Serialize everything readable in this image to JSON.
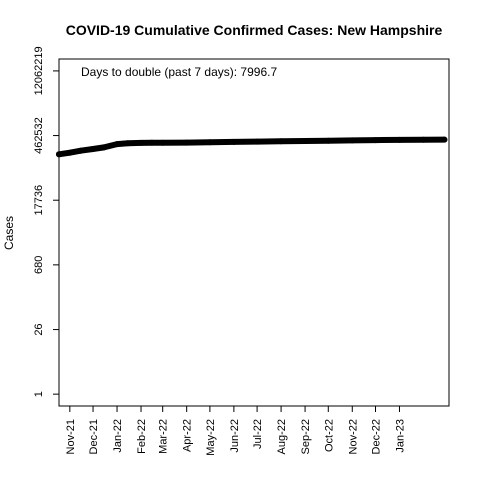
{
  "chart_data": {
    "type": "line",
    "title": "COVID-19 Cumulative Confirmed Cases: New Hampshire",
    "ylabel": "Cases",
    "xlabel": "",
    "y_scale": "log",
    "annotation": "Days to double (past 7 days): 7996.7",
    "y_ticks": [
      1,
      26,
      680,
      17736,
      462532,
      12062219
    ],
    "y_tick_labels": [
      "1",
      "26",
      "680",
      "17736",
      "462532",
      "12062219"
    ],
    "ylim": [
      0.55,
      22000000
    ],
    "x_ticks": [
      "2021-11-01",
      "2021-12-01",
      "2022-01-01",
      "2022-02-01",
      "2022-03-01",
      "2022-04-01",
      "2022-05-01",
      "2022-06-01",
      "2022-07-01",
      "2022-08-01",
      "2022-09-01",
      "2022-10-01",
      "2022-11-01",
      "2022-12-01",
      "2023-01-01"
    ],
    "x_tick_labels": [
      "Nov-21",
      "Dec-21",
      "Jan-22",
      "Feb-22",
      "Mar-22",
      "Apr-22",
      "May-22",
      "Jun-22",
      "Jul-22",
      "Aug-22",
      "Sep-22",
      "Oct-22",
      "Nov-22",
      "Dec-22",
      "Jan-23"
    ],
    "xlim": [
      "2021-10-18",
      "2023-03-06"
    ],
    "grid": false,
    "series": [
      {
        "name": "",
        "color": "#000000",
        "x": [
          "2021-10-18",
          "2021-11-01",
          "2021-11-15",
          "2021-12-01",
          "2021-12-15",
          "2022-01-01",
          "2022-01-15",
          "2022-02-01",
          "2022-02-15",
          "2022-03-01",
          "2022-04-01",
          "2022-05-01",
          "2022-06-01",
          "2022-07-01",
          "2022-08-01",
          "2022-09-01",
          "2022-10-01",
          "2022-11-01",
          "2022-12-01",
          "2023-01-01",
          "2023-02-01",
          "2023-02-28"
        ],
        "y": [
          180000,
          195000,
          215000,
          235000,
          255000,
          300000,
          315000,
          320000,
          321000,
          322000,
          324000,
          330000,
          336000,
          341000,
          346000,
          352000,
          357000,
          362000,
          367000,
          371000,
          375000,
          378000
        ]
      }
    ]
  }
}
